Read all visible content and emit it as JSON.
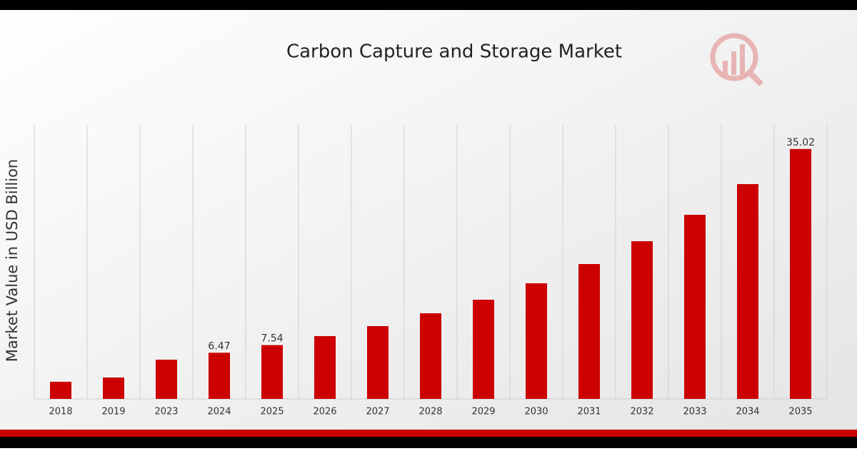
{
  "chart_data": {
    "type": "bar",
    "title": "Carbon Capture and Storage Market",
    "y_label": "Market Value in USD Billion",
    "categories": [
      "2018",
      "2019",
      "2023",
      "2024",
      "2025",
      "2026",
      "2027",
      "2028",
      "2029",
      "2030",
      "2031",
      "2032",
      "2033",
      "2034",
      "2035"
    ],
    "values": [
      2.4,
      3.0,
      5.5,
      6.47,
      7.54,
      8.8,
      10.2,
      12.0,
      13.9,
      16.2,
      18.9,
      22.1,
      25.8,
      30.1,
      35.02
    ],
    "value_labels": [
      null,
      null,
      null,
      "6.47",
      "7.54",
      null,
      null,
      null,
      null,
      null,
      null,
      null,
      null,
      null,
      "35.02"
    ],
    "color": "#cc0000",
    "ylim": [
      0,
      38.4
    ],
    "grid": true
  }
}
